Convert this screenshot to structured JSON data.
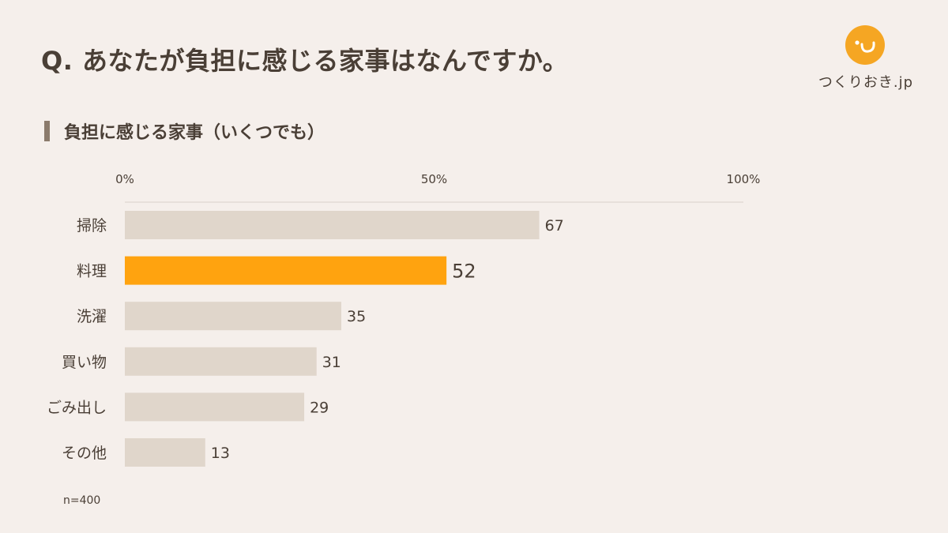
{
  "header": {
    "title": "Q. あなたが負担に感じる家事はなんですか。",
    "logo_text": "つくりおき.jp"
  },
  "subtitle": "負担に感じる家事（いくつでも）",
  "note": "n=400",
  "colors": {
    "background": "#f5efeb",
    "bar_default": "#e0d6cb",
    "bar_highlight": "#ffa30f",
    "text": "#4a3f36",
    "logo": "#f5a623"
  },
  "icons": {
    "logo": "smile-face-icon"
  },
  "chart_data": {
    "type": "bar",
    "orientation": "horizontal",
    "title": "負担に感じる家事（いくつでも）",
    "xlabel": "",
    "ylabel": "",
    "xlim": [
      0,
      100
    ],
    "x_ticks": [
      "0%",
      "50%",
      "100%"
    ],
    "x_tick_values": [
      0,
      50,
      100
    ],
    "categories": [
      "掃除",
      "料理",
      "洗濯",
      "買い物",
      "ごみ出し",
      "その他"
    ],
    "values": [
      67,
      52,
      35,
      31,
      29,
      13
    ],
    "highlight_index": 1,
    "grid": false,
    "legend": "none"
  }
}
